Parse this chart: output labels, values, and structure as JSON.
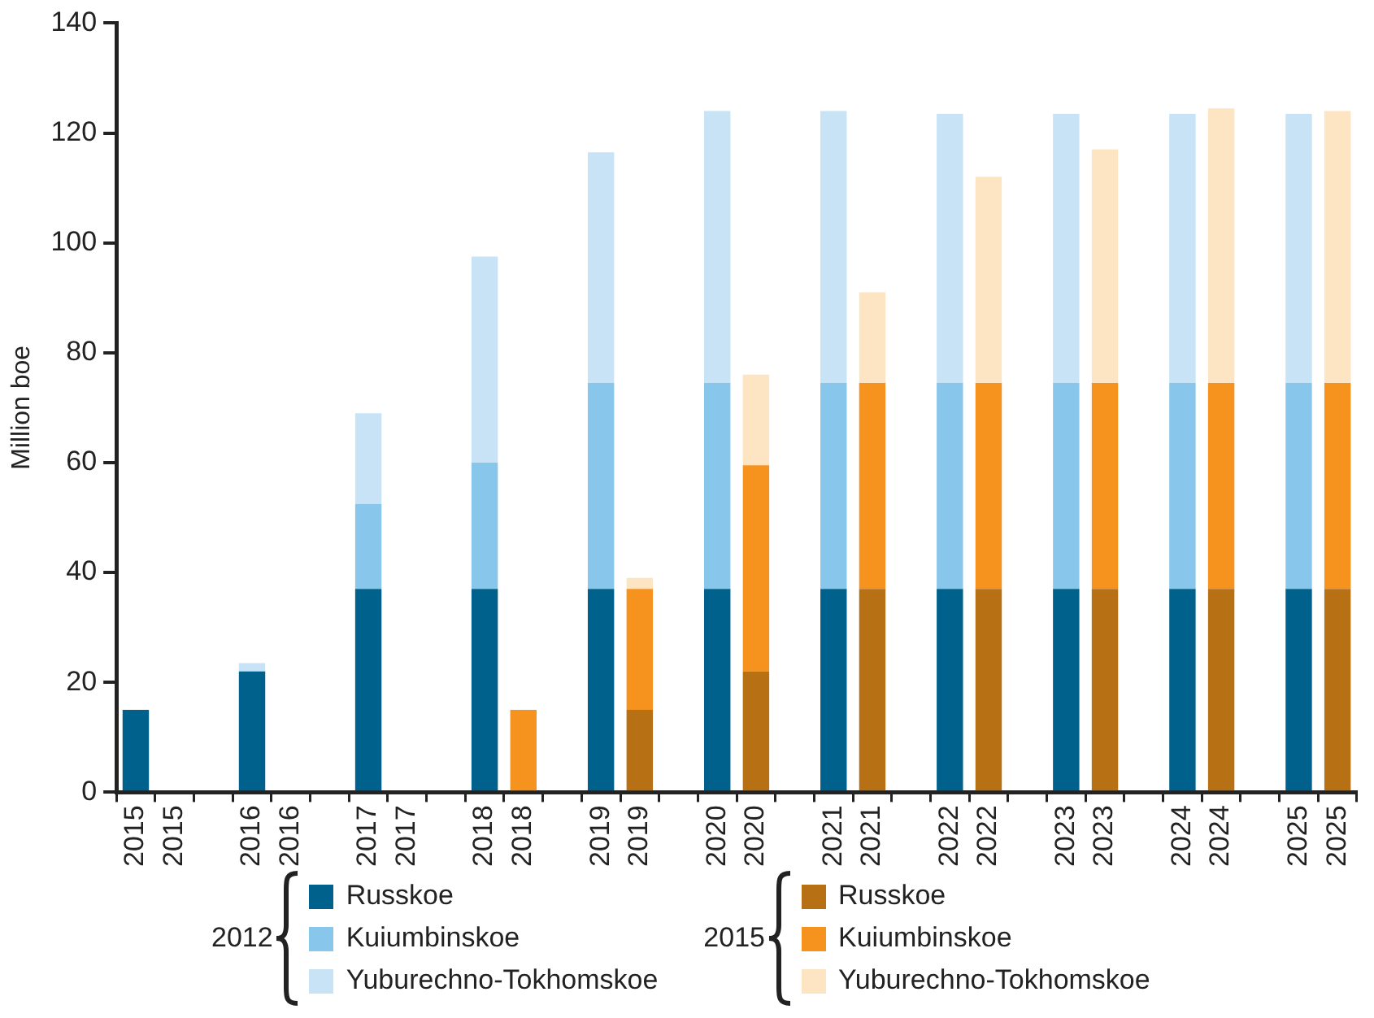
{
  "chart_data": {
    "type": "bar",
    "ylabel": "Million boe",
    "stacked": true,
    "legend": "bottom",
    "grid": false,
    "categories": [
      "2015",
      "2015",
      null,
      "2016",
      "2016",
      null,
      "2017",
      "2017",
      null,
      "2018",
      "2018",
      null,
      "2019",
      "2019",
      null,
      "2020",
      "2020",
      null,
      "2021",
      "2021",
      null,
      "2022",
      "2022",
      null,
      "2023",
      "2023",
      null,
      "2024",
      "2024",
      null,
      "2025",
      "2025"
    ],
    "ylim": [
      0,
      140
    ],
    "yticks": [
      0,
      20,
      40,
      60,
      80,
      100,
      120,
      140
    ],
    "annotations": [
      "2012",
      "2015"
    ],
    "series": [
      {
        "name": "Russkoe",
        "color": "#00628c",
        "values": [
          15,
          null,
          null,
          22,
          null,
          null,
          37,
          null,
          null,
          37,
          null,
          null,
          37,
          null,
          null,
          37,
          null,
          null,
          37,
          null,
          null,
          37,
          null,
          null,
          37,
          null,
          null,
          37,
          null,
          null,
          37,
          null
        ]
      },
      {
        "name": "Kuiumbinskoe",
        "color": "#89c6ec",
        "values": [
          null,
          null,
          null,
          null,
          null,
          null,
          15.5,
          null,
          null,
          23,
          null,
          null,
          37.5,
          null,
          null,
          37.5,
          null,
          null,
          37.5,
          null,
          null,
          37.5,
          null,
          null,
          37.5,
          null,
          null,
          37.5,
          null,
          null,
          37.5,
          null
        ]
      },
      {
        "name": "Yuburechno-Tokhomskoe",
        "color": "#c8e3f5",
        "values": [
          null,
          null,
          null,
          1.5,
          null,
          null,
          16.5,
          null,
          null,
          37.5,
          null,
          null,
          42,
          null,
          null,
          49.5,
          null,
          null,
          49.5,
          null,
          null,
          49,
          null,
          null,
          49,
          null,
          null,
          49,
          null,
          null,
          49,
          null
        ]
      },
      {
        "name": "Russkoe",
        "color": "#b87014",
        "values": [
          null,
          null,
          null,
          null,
          null,
          null,
          null,
          null,
          null,
          null,
          null,
          null,
          null,
          15,
          null,
          null,
          22,
          null,
          null,
          37,
          null,
          null,
          37,
          null,
          null,
          37,
          null,
          null,
          37,
          null,
          null,
          37
        ]
      },
      {
        "name": "Kuiumbinskoe",
        "color": "#f6921e",
        "values": [
          null,
          null,
          null,
          null,
          null,
          null,
          null,
          null,
          null,
          null,
          15,
          null,
          null,
          22,
          null,
          null,
          37.5,
          null,
          null,
          37.5,
          null,
          null,
          37.5,
          null,
          null,
          37.5,
          null,
          null,
          37.5,
          null,
          null,
          37.5
        ]
      },
      {
        "name": "Yuburechno-Tokhomskoe",
        "color": "#fde4c3",
        "values": [
          null,
          null,
          null,
          null,
          null,
          null,
          null,
          null,
          null,
          null,
          null,
          null,
          null,
          2,
          null,
          null,
          16.5,
          null,
          null,
          16.5,
          null,
          null,
          37.5,
          null,
          null,
          42.5,
          null,
          null,
          50,
          null,
          null,
          49.5
        ]
      }
    ]
  }
}
